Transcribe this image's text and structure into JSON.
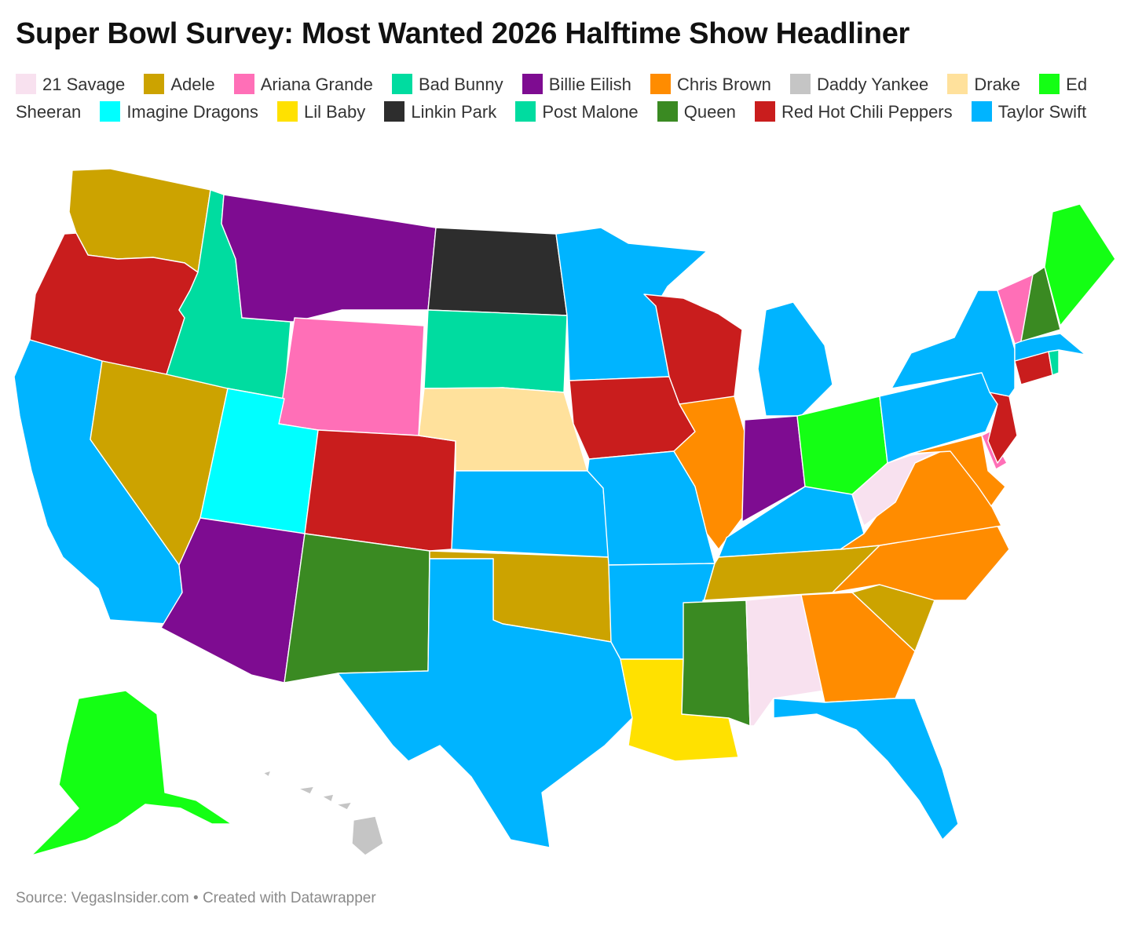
{
  "title": "Super Bowl Survey: Most Wanted 2026 Halftime Show Headliner",
  "legend": [
    {
      "label": "21 Savage",
      "color": "#f8e1ef"
    },
    {
      "label": "Adele",
      "color": "#cca300"
    },
    {
      "label": "Ariana Grande",
      "color": "#ff6fb7"
    },
    {
      "label": "Bad Bunny",
      "color": "#00dca0"
    },
    {
      "label": "Billie Eilish",
      "color": "#7e0c91"
    },
    {
      "label": "Chris Brown",
      "color": "#ff8c00"
    },
    {
      "label": "Daddy Yankee",
      "color": "#c5c5c5"
    },
    {
      "label": "Drake",
      "color": "#ffe19c"
    },
    {
      "label": "Ed Sheeran",
      "color": "#14ff14"
    },
    {
      "label": "Imagine Dragons",
      "color": "#00ffff"
    },
    {
      "label": "Lil Baby",
      "color": "#ffe100"
    },
    {
      "label": "Linkin Park",
      "color": "#2d2d2d"
    },
    {
      "label": "Post Malone",
      "color": "#00dca0"
    },
    {
      "label": "Queen",
      "color": "#3a8a22"
    },
    {
      "label": "Red Hot Chili Peppers",
      "color": "#c91d1d"
    },
    {
      "label": "Taylor Swift",
      "color": "#00b4ff"
    }
  ],
  "states": {
    "WA": "Adele",
    "OR": "Red Hot Chili Peppers",
    "CA": "Taylor Swift",
    "NV": "Adele",
    "ID": "Bad Bunny",
    "MT": "Billie Eilish",
    "WY": "Ariana Grande",
    "UT": "Imagine Dragons",
    "CO": "Red Hot Chili Peppers",
    "AZ": "Billie Eilish",
    "NM": "Queen",
    "ND": "Linkin Park",
    "SD": "Bad Bunny",
    "NE": "Drake",
    "KS": "Taylor Swift",
    "OK": "Adele",
    "TX": "Taylor Swift",
    "MN": "Taylor Swift",
    "IA": "Red Hot Chili Peppers",
    "MO": "Taylor Swift",
    "AR": "Taylor Swift",
    "LA": "Lil Baby",
    "WI": "Red Hot Chili Peppers",
    "IL": "Chris Brown",
    "MI": "Taylor Swift",
    "IN": "Billie Eilish",
    "OH": "Ed Sheeran",
    "KY": "Taylor Swift",
    "TN": "Adele",
    "MS": "Queen",
    "AL": "21 Savage",
    "GA": "Chris Brown",
    "FL": "Taylor Swift",
    "SC": "Adele",
    "NC": "Chris Brown",
    "VA": "Chris Brown",
    "WV": "21 Savage",
    "MD": "Chris Brown",
    "DE": "Ariana Grande",
    "PA": "Taylor Swift",
    "NJ": "Red Hot Chili Peppers",
    "NY": "Taylor Swift",
    "CT": "Red Hot Chili Peppers",
    "RI": "Bad Bunny",
    "MA": "Taylor Swift",
    "VT": "Ariana Grande",
    "NH": "Queen",
    "ME": "Ed Sheeran",
    "AK": "Ed Sheeran",
    "HI": "Daddy Yankee"
  },
  "footer": "Source: VegasInsider.com • Created with Datawrapper"
}
